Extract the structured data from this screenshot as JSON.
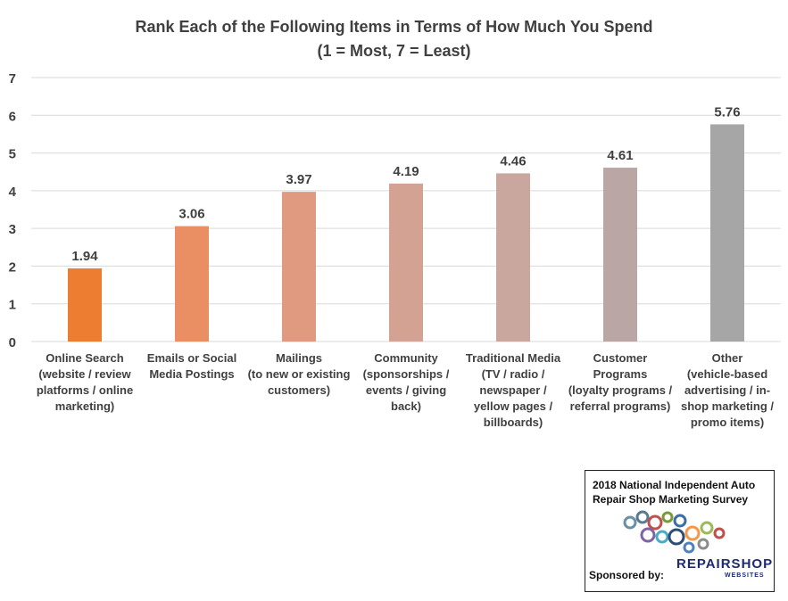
{
  "chart_data": {
    "type": "bar",
    "title": "Rank Each of the Following Items in Terms of How Much You Spend",
    "subtitle": "(1 = Most, 7 = Least)",
    "categories": [
      "Online Search (website / review platforms / online marketing)",
      "Emails or Social Media Postings",
      "Mailings (to new or existing customers)",
      "Community (sponsorships / events / giving back)",
      "Traditional Media (TV / radio / newspaper / yellow pages / billboards)",
      "Customer Programs (loyalty programs / referral programs)",
      "Other (vehicle-based advertising / in-shop marketing / promo items)"
    ],
    "category_lines": [
      [
        "Online Search",
        "(website / review",
        "platforms / online",
        "marketing)"
      ],
      [
        "Emails or Social",
        "Media Postings"
      ],
      [
        "Mailings",
        "(to new or existing",
        "customers)"
      ],
      [
        "Community",
        "(sponsorships /",
        "events / giving",
        "back)"
      ],
      [
        "Traditional Media",
        "(TV / radio /",
        "newspaper /",
        "yellow pages /",
        "billboards)"
      ],
      [
        "Customer",
        "Programs",
        "(loyalty programs /",
        "referral programs)"
      ],
      [
        "Other",
        "(vehicle-based",
        "advertising / in-",
        "shop marketing /",
        "promo items)"
      ]
    ],
    "values": [
      1.94,
      3.06,
      3.97,
      4.19,
      4.46,
      4.61,
      5.76
    ],
    "data_labels": [
      "1.94",
      "3.06",
      "3.97",
      "4.19",
      "4.46",
      "4.61",
      "5.76"
    ],
    "bar_colors": [
      "#ED7D31",
      "#E98F63",
      "#E09A80",
      "#D4A293",
      "#C9A69E",
      "#B9A6A5",
      "#A6A6A6"
    ],
    "ylim": [
      0,
      7
    ],
    "yticks": [
      "0",
      "1",
      "2",
      "3",
      "4",
      "5",
      "6",
      "7"
    ],
    "grid": true,
    "gridline_color": "#D9D9D9",
    "legend": "none"
  },
  "badge": {
    "title_line1": "2018 National Independent Auto",
    "title_line2": "Repair Shop Marketing Survey",
    "sponsored": "Sponsored by:",
    "brand": "REPAIRSHOP",
    "brand_sub": "WEBSITES"
  }
}
